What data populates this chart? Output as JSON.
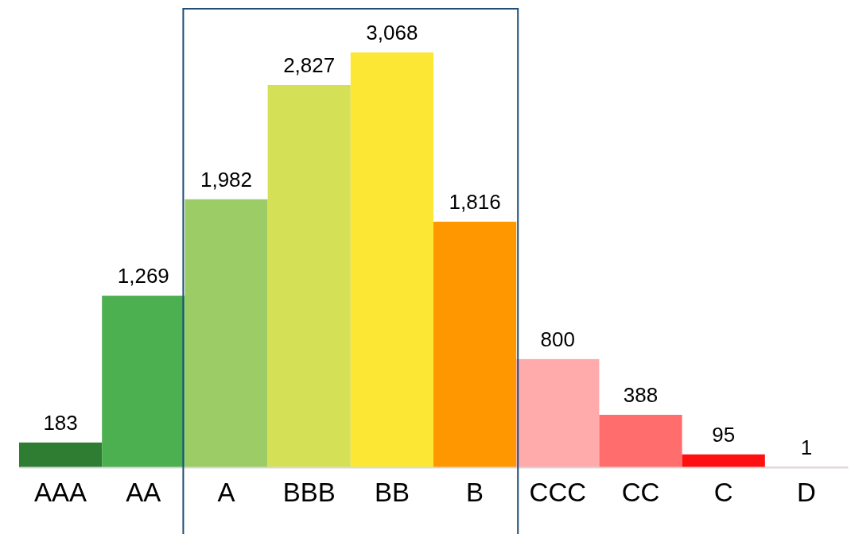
{
  "chart_data": {
    "type": "bar",
    "categories": [
      "AAA",
      "AA",
      "A",
      "BBB",
      "BB",
      "B",
      "CCC",
      "CC",
      "C",
      "D"
    ],
    "values": [
      183,
      1269,
      1982,
      2827,
      3068,
      1816,
      800,
      388,
      95,
      1
    ],
    "colors": [
      "#2e7d32",
      "#4caf50",
      "#9ccc65",
      "#d4e157",
      "#fde735",
      "#ff9800",
      "#ffabab",
      "#ff6d6d",
      "#ff1010",
      "#ff0000"
    ],
    "value_labels": [
      "183",
      "1,269",
      "1,982",
      "2,827",
      "3,068",
      "1,816",
      "800",
      "388",
      "95",
      "1"
    ]
  }
}
